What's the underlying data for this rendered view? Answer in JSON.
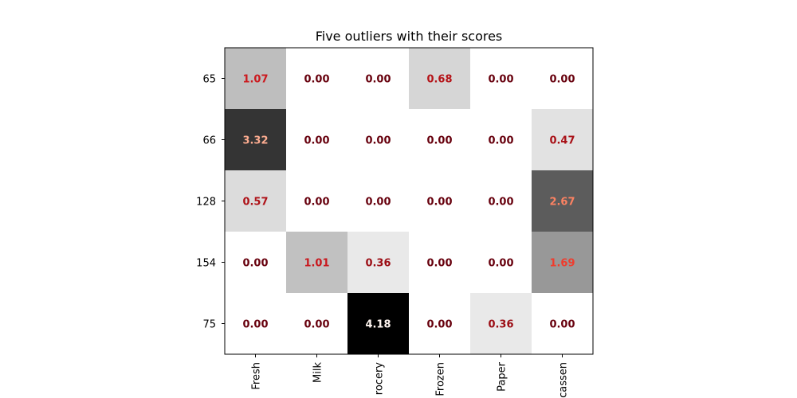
{
  "chart_data": {
    "type": "heatmap",
    "title": "Five outliers with their scores",
    "xlabel": "",
    "ylabel": "",
    "columns": [
      "Fresh",
      "Milk",
      "Grocery",
      "Frozen",
      "Detergents_Paper",
      "Delicatessen"
    ],
    "visible_column_labels": [
      "Fresh",
      "Milk",
      "rocery",
      "Frozen",
      "Paper",
      "cassen"
    ],
    "rows": [
      "65",
      "66",
      "128",
      "154",
      "75"
    ],
    "values": [
      [
        1.07,
        0.0,
        0.0,
        0.68,
        0.0,
        0.0
      ],
      [
        3.32,
        0.0,
        0.0,
        0.0,
        0.0,
        0.47
      ],
      [
        0.57,
        0.0,
        0.0,
        0.0,
        0.0,
        2.67
      ],
      [
        0.0,
        1.01,
        0.36,
        0.0,
        0.0,
        1.69
      ],
      [
        0.0,
        0.0,
        4.18,
        0.0,
        0.36,
        0.0
      ]
    ],
    "value_range": [
      0,
      4.18
    ],
    "colormap": "gray_r",
    "label_colormap": "Reds_r",
    "label_format": "0.00",
    "grid": false,
    "colorbar": false
  }
}
